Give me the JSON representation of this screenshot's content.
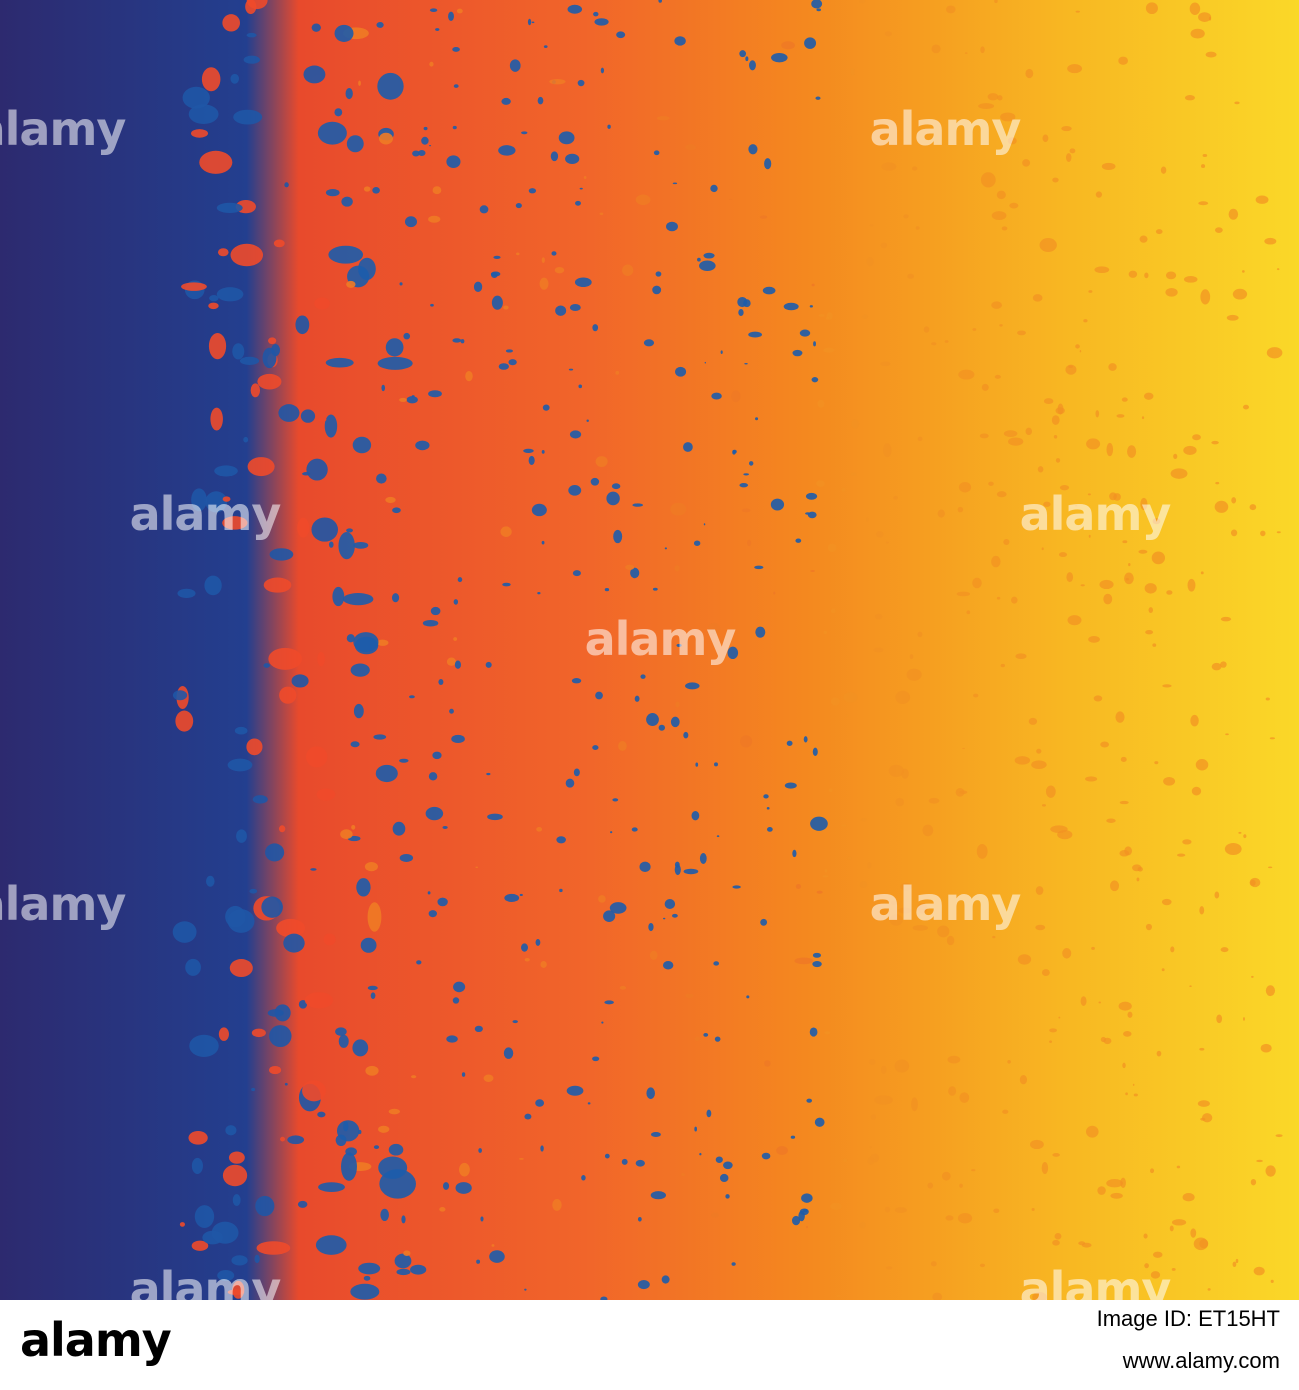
{
  "watermark": "alamy",
  "footer": {
    "logo": "alamy",
    "image_id": "Image ID: ET15HT",
    "url": "www.alamy.com"
  }
}
